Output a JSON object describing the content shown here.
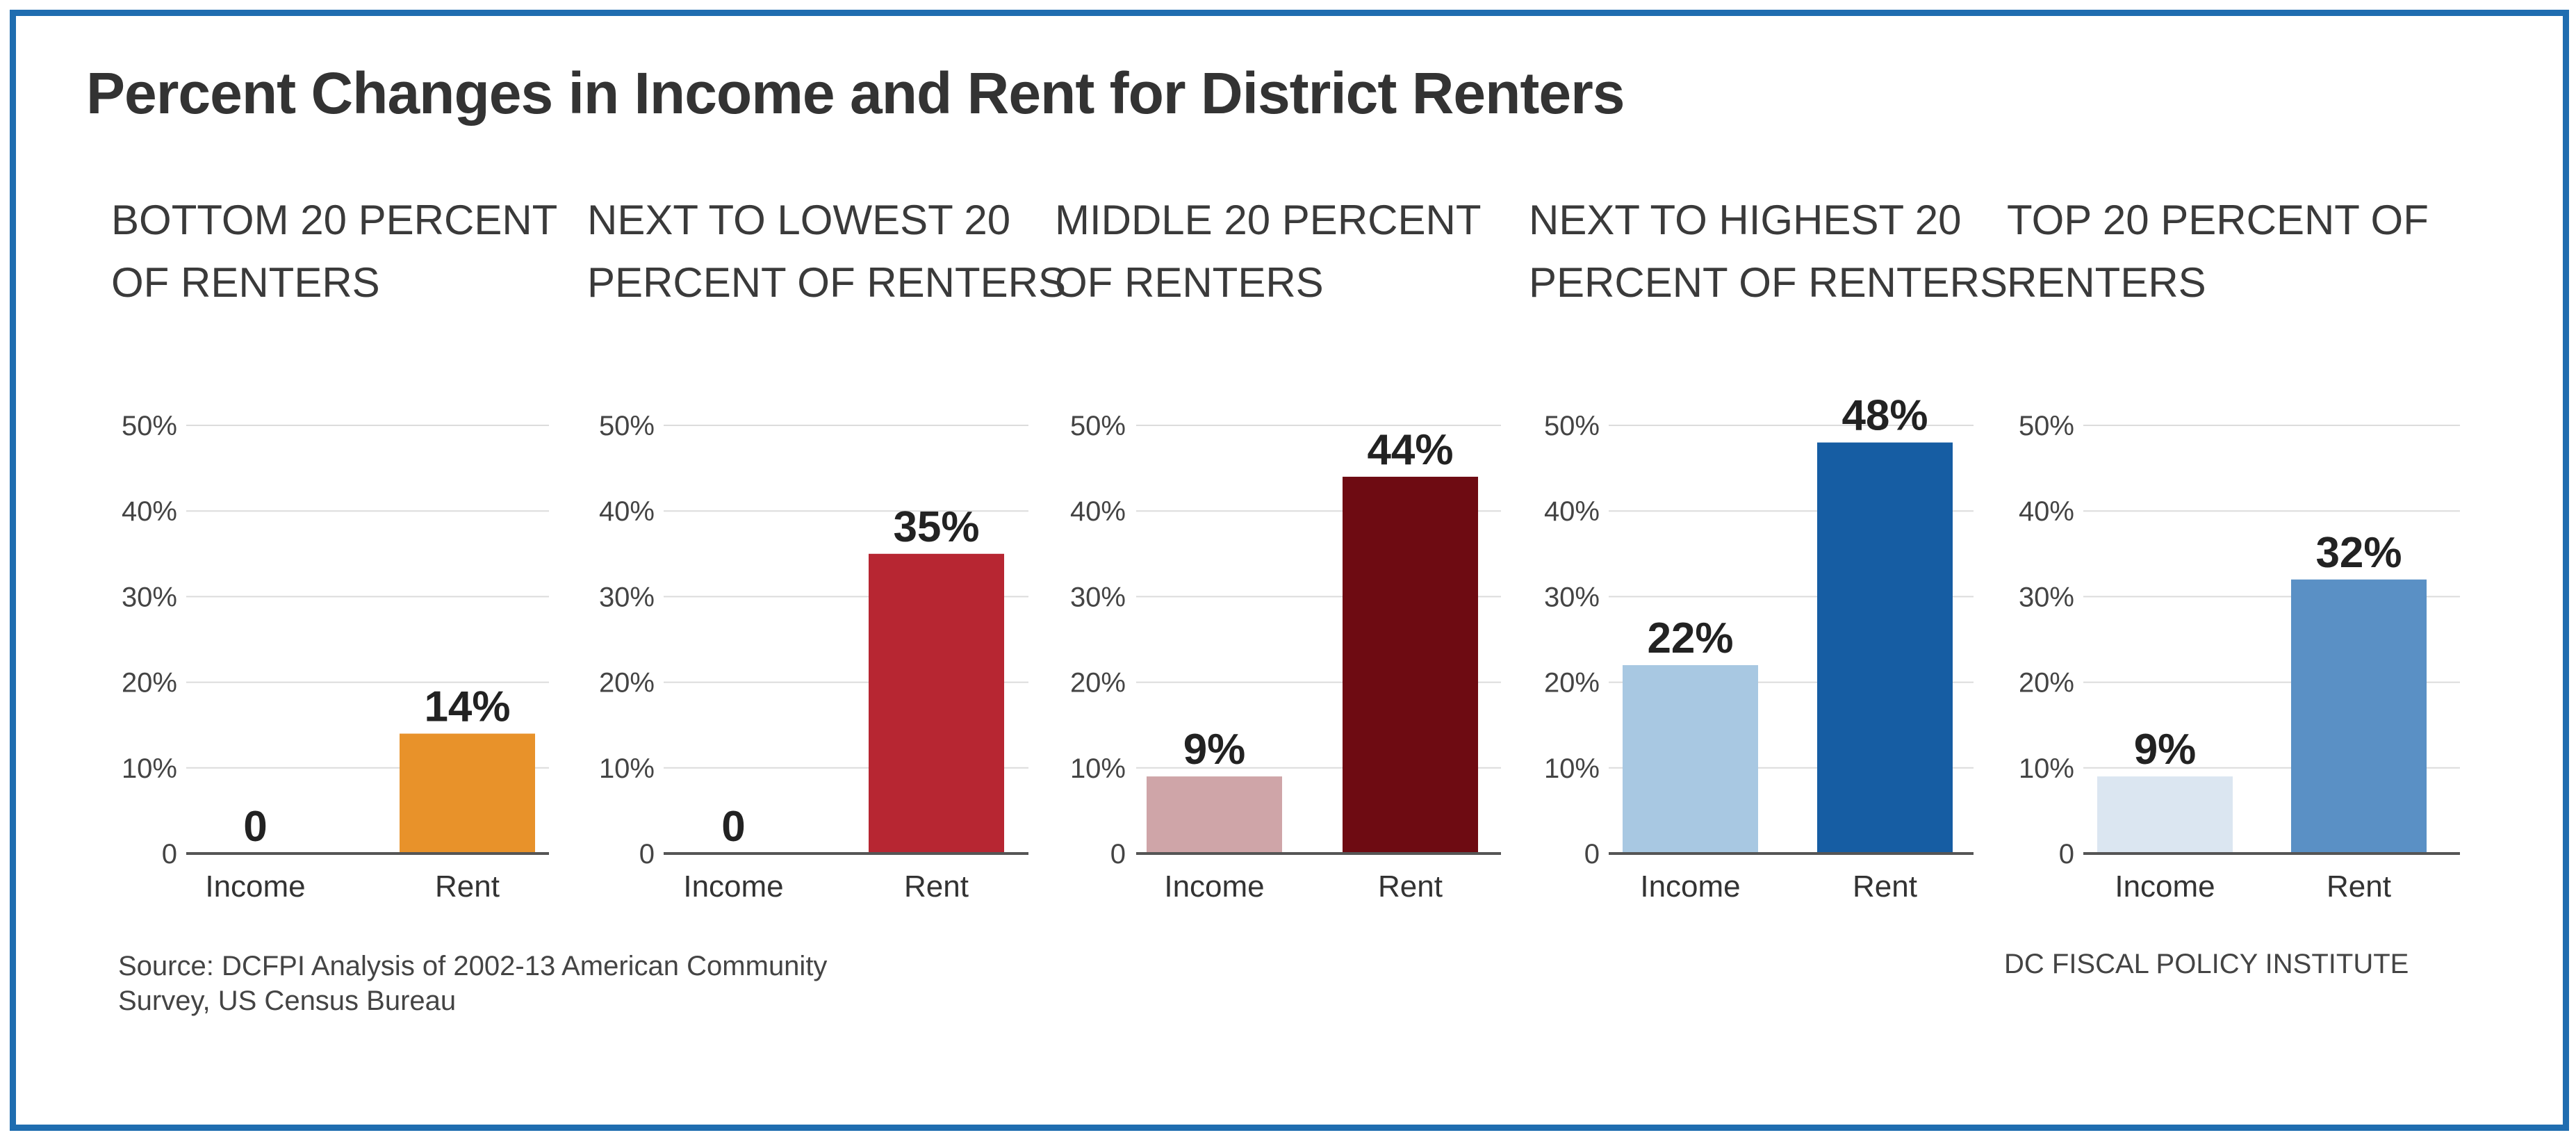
{
  "title": "Percent Changes in Income and Rent for District Renters",
  "source": {
    "line1": "Source: DCFPI Analysis of 2002-13 American Community",
    "line2": "Survey, US Census Bureau"
  },
  "organization": "DC FISCAL POLICY INSTITUTE",
  "panel_titles": [
    {
      "line1": "BOTTOM 20 PERCENT",
      "line2": "OF RENTERS"
    },
    {
      "line1": "NEXT TO LOWEST 20",
      "line2": "PERCENT OF RENTERS"
    },
    {
      "line1": "MIDDLE 20 PERCENT",
      "line2": "OF RENTERS"
    },
    {
      "line1": "NEXT TO HIGHEST 20",
      "line2": "PERCENT OF RENTERS"
    },
    {
      "line1": "TOP 20 PERCENT OF",
      "line2": "RENTERS"
    }
  ],
  "chart_data": [
    {
      "type": "bar",
      "title": "BOTTOM 20 PERCENT OF RENTERS",
      "categories": [
        "Income",
        "Rent"
      ],
      "values": [
        0,
        14
      ],
      "data_labels": [
        "0",
        "14%"
      ],
      "colors": [
        "#f1f1f1",
        "#e8922a"
      ],
      "yticks": [
        "0",
        "10%",
        "20%",
        "30%",
        "40%",
        "50%"
      ],
      "ylim": [
        0,
        50
      ]
    },
    {
      "type": "bar",
      "title": "NEXT TO LOWEST 20 PERCENT OF RENTERS",
      "categories": [
        "Income",
        "Rent"
      ],
      "values": [
        0,
        35
      ],
      "data_labels": [
        "0",
        "35%"
      ],
      "colors": [
        "#f1f1f1",
        "#b72632"
      ],
      "yticks": [
        "0",
        "10%",
        "20%",
        "30%",
        "40%",
        "50%"
      ],
      "ylim": [
        0,
        50
      ]
    },
    {
      "type": "bar",
      "title": "MIDDLE 20 PERCENT OF RENTERS",
      "categories": [
        "Income",
        "Rent"
      ],
      "values": [
        9,
        44
      ],
      "data_labels": [
        "9%",
        "44%"
      ],
      "colors": [
        "#cfa5a8",
        "#6e0b12"
      ],
      "yticks": [
        "0",
        "10%",
        "20%",
        "30%",
        "40%",
        "50%"
      ],
      "ylim": [
        0,
        50
      ]
    },
    {
      "type": "bar",
      "title": "NEXT TO HIGHEST 20 PERCENT OF RENTERS",
      "categories": [
        "Income",
        "Rent"
      ],
      "values": [
        22,
        48
      ],
      "data_labels": [
        "22%",
        "48%"
      ],
      "colors": [
        "#a8c8e2",
        "#165da3"
      ],
      "yticks": [
        "0",
        "10%",
        "20%",
        "30%",
        "40%",
        "50%"
      ],
      "ylim": [
        0,
        50
      ]
    },
    {
      "type": "bar",
      "title": "TOP 20 PERCENT OF RENTERS",
      "categories": [
        "Income",
        "Rent"
      ],
      "values": [
        9,
        32
      ],
      "data_labels": [
        "9%",
        "32%"
      ],
      "colors": [
        "#dbe6f1",
        "#5a90c5"
      ],
      "yticks": [
        "0",
        "10%",
        "20%",
        "30%",
        "40%",
        "50%"
      ],
      "ylim": [
        0,
        50
      ]
    }
  ]
}
